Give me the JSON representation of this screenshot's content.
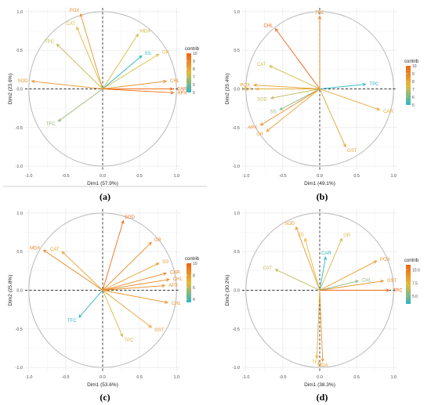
{
  "colors": {
    "low": "#2db6c6",
    "mid": "#e2ba3c",
    "high": "#f06314",
    "circle": "#b8b8b8",
    "dash": "#333333",
    "grid": "#ebebeb",
    "axis_text": "#4d4d4d"
  },
  "chart_data": [
    {
      "type": "scatter",
      "subtype": "pca-variable-correlation-circle",
      "caption": "(a)",
      "xlabel": "Dim1 (57.9%)",
      "ylabel": "Dim2 (23.6%)",
      "xlim": [
        -1.05,
        1.05
      ],
      "ylim": [
        -1.05,
        1.05
      ],
      "xticks": [
        "-1.0",
        "-0.5",
        "0.0",
        "0.5",
        "1.0"
      ],
      "yticks": [
        "1.0",
        "0.5",
        "0.0",
        "-0.5",
        "-1.0"
      ],
      "grid": true,
      "legend": {
        "title": "contrib",
        "position": "right",
        "min": 5,
        "max": 10,
        "ticks": [
          "10",
          "9",
          "8",
          "7",
          "6",
          "5"
        ]
      },
      "variables": [
        {
          "label": "POX",
          "x": -0.3,
          "y": 0.97,
          "contrib": 8.5
        },
        {
          "label": "CAT",
          "x": -0.35,
          "y": 0.8,
          "contrib": 7.4
        },
        {
          "label": "TPC",
          "x": -0.62,
          "y": 0.58,
          "contrib": 7.1
        },
        {
          "label": "MDA",
          "x": 0.48,
          "y": 0.71,
          "contrib": 7.3
        },
        {
          "label": "SS",
          "x": 0.53,
          "y": 0.43,
          "contrib": 5.0
        },
        {
          "label": "GR",
          "x": 0.76,
          "y": 0.45,
          "contrib": 7.5
        },
        {
          "label": "SOD",
          "x": -0.96,
          "y": 0.1,
          "contrib": 8.6
        },
        {
          "label": "CHL",
          "x": 0.86,
          "y": 0.1,
          "contrib": 8.8
        },
        {
          "label": "CAR",
          "x": 0.95,
          "y": 0.0,
          "contrib": 9.8
        },
        {
          "label": "APX",
          "x": 0.96,
          "y": -0.05,
          "contrib": 9.5
        },
        {
          "label": "TFC",
          "x": -0.6,
          "y": -0.42,
          "contrib": 6.5
        }
      ]
    },
    {
      "type": "scatter",
      "subtype": "pca-variable-correlation-circle",
      "caption": "(b)",
      "xlabel": "Dim1 (49.1%)",
      "ylabel": "Dim2 (25.4%)",
      "xlim": [
        -1.05,
        1.05
      ],
      "ylim": [
        -1.05,
        1.05
      ],
      "xticks": [
        "-1.0",
        "-0.5",
        "0.0",
        "0.5",
        "1.0"
      ],
      "yticks": [
        "1.0",
        "0.5",
        "0.0",
        "-0.5",
        "-1.0"
      ],
      "grid": true,
      "legend": {
        "title": "contrib",
        "position": "right",
        "min": 5,
        "max": 10,
        "ticks": [
          "10",
          "9",
          "8",
          "7",
          "6",
          "5"
        ]
      },
      "variables": [
        {
          "label": "TFC",
          "x": 0.0,
          "y": 0.94,
          "contrib": 9.0
        },
        {
          "label": "CHL",
          "x": -0.6,
          "y": 0.78,
          "contrib": 10.0
        },
        {
          "label": "CAT",
          "x": -0.68,
          "y": 0.3,
          "contrib": 7.3
        },
        {
          "label": "TPC",
          "x": 0.62,
          "y": 0.06,
          "contrib": 5.0
        },
        {
          "label": "POX",
          "x": -0.89,
          "y": 0.05,
          "contrib": 8.4
        },
        {
          "label": "MDA",
          "x": -0.86,
          "y": 0.0,
          "contrib": 7.9
        },
        {
          "label": "SOD",
          "x": -0.66,
          "y": -0.12,
          "contrib": 7.0
        },
        {
          "label": "SS",
          "x": -0.54,
          "y": -0.27,
          "contrib": 6.3
        },
        {
          "label": "CAR",
          "x": 0.81,
          "y": -0.27,
          "contrib": 8.1
        },
        {
          "label": "APX",
          "x": -0.8,
          "y": -0.47,
          "contrib": 8.9
        },
        {
          "label": "GR",
          "x": -0.72,
          "y": -0.55,
          "contrib": 8.2
        },
        {
          "label": "GST",
          "x": 0.35,
          "y": -0.75,
          "contrib": 8.2
        }
      ]
    },
    {
      "type": "scatter",
      "subtype": "pca-variable-correlation-circle",
      "caption": "(c)",
      "xlabel": "Dim1 (53.6%)",
      "ylabel": "Dim2 (25.8%)",
      "xlim": [
        -1.05,
        1.05
      ],
      "ylim": [
        -1.05,
        1.05
      ],
      "xticks": [
        "-1.0",
        "-0.5",
        "0.0",
        "0.5",
        "1.0"
      ],
      "yticks": [
        "1.0",
        "0.5",
        "0.0",
        "-0.5",
        "-1.0"
      ],
      "grid": true,
      "legend": {
        "title": "contrib",
        "position": "right",
        "min": 3.5,
        "max": 10,
        "ticks": [
          "10",
          "8",
          "6",
          "4"
        ]
      },
      "variables": [
        {
          "label": "SOD",
          "x": 0.28,
          "y": 0.9,
          "contrib": 9.6
        },
        {
          "label": "GR",
          "x": 0.66,
          "y": 0.62,
          "contrib": 8.5
        },
        {
          "label": "MDA",
          "x": -0.8,
          "y": 0.52,
          "contrib": 8.6
        },
        {
          "label": "CAT",
          "x": -0.55,
          "y": 0.5,
          "contrib": 7.6
        },
        {
          "label": "SS",
          "x": 0.76,
          "y": 0.35,
          "contrib": 8.0
        },
        {
          "label": "CAR",
          "x": 0.86,
          "y": 0.22,
          "contrib": 8.8
        },
        {
          "label": "CHL",
          "x": 0.9,
          "y": 0.14,
          "contrib": 8.6
        },
        {
          "label": "APX",
          "x": 0.84,
          "y": 0.06,
          "contrib": 8.4
        },
        {
          "label": "CHL",
          "x": 0.88,
          "y": -0.16,
          "contrib": 8.3
        },
        {
          "label": "TFC",
          "x": -0.32,
          "y": -0.35,
          "contrib": 3.5
        },
        {
          "label": "TPC",
          "x": 0.27,
          "y": -0.6,
          "contrib": 6.5
        },
        {
          "label": "GST",
          "x": 0.66,
          "y": -0.48,
          "contrib": 7.6
        }
      ]
    },
    {
      "type": "scatter",
      "subtype": "pca-variable-correlation-circle",
      "caption": "(d)",
      "xlabel": "Dim1 (38.3%)",
      "ylabel": "Dim2 (30.2%)",
      "xlim": [
        -1.05,
        1.05
      ],
      "ylim": [
        -1.05,
        1.05
      ],
      "xticks": [
        "-1.0",
        "-0.5",
        "0.0",
        "0.5",
        "1.0"
      ],
      "yticks": [
        "1.0",
        "0.5",
        "0.0",
        "-0.5",
        "-1.0"
      ],
      "grid": true,
      "legend": {
        "title": "contrib",
        "position": "right",
        "min": 3.5,
        "max": 11,
        "ticks": [
          "10.0",
          "7.5",
          "5.0"
        ]
      },
      "variables": [
        {
          "label": "SOD",
          "x": -0.32,
          "y": 0.82,
          "contrib": 8.7
        },
        {
          "label": "SS",
          "x": -0.2,
          "y": 0.67,
          "contrib": 7.2
        },
        {
          "label": "GR",
          "x": 0.3,
          "y": 0.67,
          "contrib": 6.9
        },
        {
          "label": "CAR",
          "x": 0.08,
          "y": 0.43,
          "contrib": 3.6
        },
        {
          "label": "CAT",
          "x": -0.6,
          "y": 0.27,
          "contrib": 6.5
        },
        {
          "label": "POX",
          "x": 0.77,
          "y": 0.38,
          "contrib": 8.6
        },
        {
          "label": "GST",
          "x": 0.86,
          "y": 0.12,
          "contrib": 9.1
        },
        {
          "label": "CHL",
          "x": 0.52,
          "y": 0.12,
          "contrib": 5.4
        },
        {
          "label": "TPC",
          "x": 0.94,
          "y": 0.0,
          "contrib": 10.8
        },
        {
          "label": "TFC",
          "x": -0.04,
          "y": -0.88,
          "contrib": 8.0
        },
        {
          "label": "MDA",
          "x": 0.04,
          "y": -0.92,
          "contrib": 8.7
        }
      ]
    }
  ]
}
